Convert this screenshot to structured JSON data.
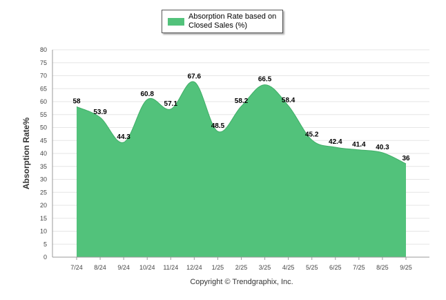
{
  "chart_data": {
    "type": "area",
    "categories": [
      "7/24",
      "8/24",
      "9/24",
      "10/24",
      "11/24",
      "12/24",
      "1/25",
      "2/25",
      "3/25",
      "4/25",
      "5/25",
      "6/25",
      "7/25",
      "8/25",
      "9/25"
    ],
    "series": [
      {
        "name": "Absorption Rate based on Closed Sales (%)",
        "values": [
          58,
          53.9,
          44.3,
          60.8,
          57.1,
          67.6,
          48.5,
          58.2,
          66.5,
          58.4,
          45.2,
          42.4,
          41.4,
          40.3,
          36
        ],
        "color": "#52c27b"
      }
    ],
    "ylabel": "Absorption Rate%",
    "ylim": [
      0,
      80
    ],
    "yticks": [
      0,
      5,
      10,
      15,
      20,
      25,
      30,
      35,
      40,
      45,
      50,
      55,
      60,
      65,
      70,
      75,
      80
    ],
    "grid": true,
    "legend_position": "top-center"
  },
  "legend": {
    "label": "Absorption Rate based on Closed Sales (%)"
  },
  "footer": {
    "copyright": "Copyright © Trendgraphix, Inc."
  }
}
